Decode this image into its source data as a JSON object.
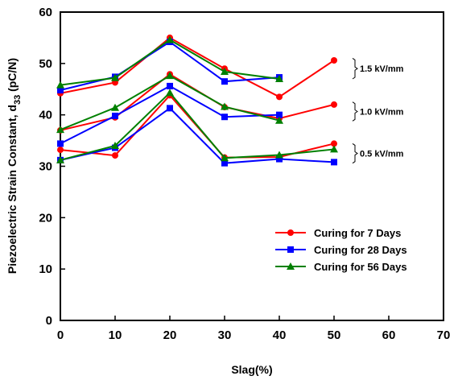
{
  "chart_data": {
    "type": "line",
    "xlabel": "Slag(%)",
    "ylabel_prefix": "Piezoelectric Strain Constant, d",
    "ylabel_sub": "33",
    "ylabel_suffix": " (pC/N)",
    "xlim": [
      0,
      70
    ],
    "ylim": [
      0,
      60
    ],
    "xticks": [
      0,
      10,
      20,
      30,
      40,
      50,
      60,
      70
    ],
    "yticks": [
      0,
      10,
      20,
      30,
      40,
      50,
      60
    ],
    "grid": false,
    "legend_position": "bottom-right",
    "legend": [
      {
        "label": "Curing for   7 Days",
        "color": "#ff0000",
        "marker": "circle"
      },
      {
        "label": "Curing for 28 Days",
        "color": "#0000ff",
        "marker": "square"
      },
      {
        "label": "Curing for 56 Days",
        "color": "#008000",
        "marker": "triangle"
      }
    ],
    "annotations": [
      {
        "text": "1.5 kV/mm",
        "y_from": 47,
        "y_to": 51
      },
      {
        "text": "1.0 kV/mm",
        "y_from": 38.8,
        "y_to": 42.5
      },
      {
        "text": "0.5 kV/mm",
        "y_from": 30.6,
        "y_to": 34.4
      }
    ],
    "series": [
      {
        "curing": "7 Days",
        "field": "1.5 kV/mm",
        "color": "#ff0000",
        "marker": "circle",
        "x": [
          0,
          10,
          20,
          30,
          40,
          50
        ],
        "y": [
          44.2,
          46.3,
          55.0,
          49.0,
          43.5,
          50.6
        ]
      },
      {
        "curing": "7 Days",
        "field": "1.0 kV/mm",
        "color": "#ff0000",
        "marker": "circle",
        "x": [
          0,
          10,
          20,
          30,
          40,
          50
        ],
        "y": [
          37.0,
          39.5,
          47.9,
          41.5,
          39.3,
          42.0
        ]
      },
      {
        "curing": "7 Days",
        "field": "0.5 kV/mm",
        "color": "#ff0000",
        "marker": "circle",
        "x": [
          0,
          10,
          20,
          30,
          40,
          50
        ],
        "y": [
          33.2,
          32.1,
          43.8,
          31.7,
          31.8,
          34.4
        ]
      },
      {
        "curing": "28 Days",
        "field": "1.5 kV/mm",
        "color": "#0000ff",
        "marker": "square",
        "x": [
          0,
          10,
          20,
          30,
          40
        ],
        "y": [
          44.8,
          47.4,
          54.2,
          46.5,
          47.3
        ]
      },
      {
        "curing": "28 Days",
        "field": "1.0 kV/mm",
        "color": "#0000ff",
        "marker": "square",
        "x": [
          0,
          10,
          20,
          30,
          40,
          50
        ],
        "y": [
          34.4,
          39.8,
          45.6,
          39.6,
          40.0,
          null
        ]
      },
      {
        "curing": "28 Days",
        "field": "0.5 kV/mm",
        "color": "#0000ff",
        "marker": "square",
        "x": [
          0,
          10,
          20,
          30,
          40,
          50
        ],
        "y": [
          31.2,
          33.6,
          41.3,
          30.6,
          31.4,
          30.8
        ]
      },
      {
        "curing": "56 Days",
        "field": "1.5 kV/mm",
        "color": "#008000",
        "marker": "triangle",
        "x": [
          0,
          10,
          20,
          30,
          40
        ],
        "y": [
          45.8,
          47.2,
          54.6,
          48.4,
          47.0
        ]
      },
      {
        "curing": "56 Days",
        "field": "1.0 kV/mm",
        "color": "#008000",
        "marker": "triangle",
        "x": [
          0,
          10,
          20,
          30,
          40
        ],
        "y": [
          37.1,
          41.4,
          47.6,
          41.6,
          38.9
        ]
      },
      {
        "curing": "56 Days",
        "field": "0.5 kV/mm",
        "color": "#008000",
        "marker": "triangle",
        "x": [
          0,
          10,
          20,
          30,
          40,
          50
        ],
        "y": [
          31.2,
          34.0,
          44.3,
          31.6,
          32.2,
          33.3
        ]
      }
    ]
  }
}
